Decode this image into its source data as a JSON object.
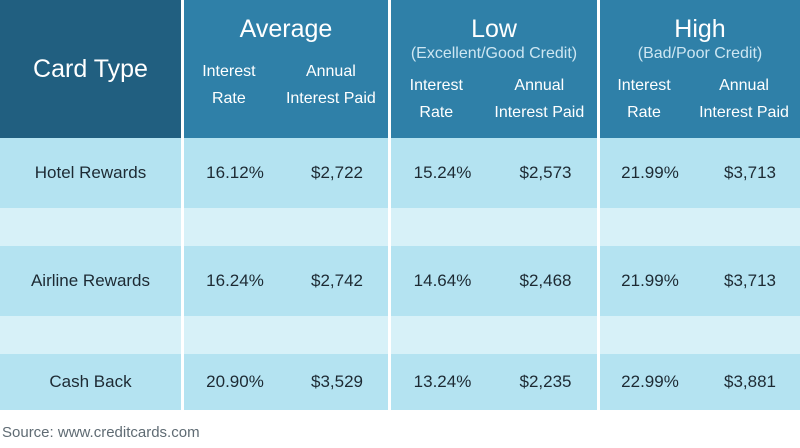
{
  "header": {
    "card_type": "Card Type",
    "groups": [
      {
        "title": "Average",
        "subtitle": "",
        "col1": [
          "Interest",
          "Rate"
        ],
        "col2": [
          "Annual",
          "Interest Paid"
        ]
      },
      {
        "title": "Low",
        "subtitle": "(Excellent/Good Credit)",
        "col1": [
          "Interest",
          "Rate"
        ],
        "col2": [
          "Annual",
          "Interest Paid"
        ]
      },
      {
        "title": "High",
        "subtitle": "(Bad/Poor Credit)",
        "col1": [
          "Interest",
          "Rate"
        ],
        "col2": [
          "Annual",
          "Interest Paid"
        ]
      }
    ]
  },
  "rows": [
    {
      "type": "Hotel Rewards",
      "average": [
        "16.12%",
        "$2,722"
      ],
      "low": [
        "15.24%",
        "$2,573"
      ],
      "high": [
        "21.99%",
        "$3,713"
      ]
    },
    {
      "type": "Airline Rewards",
      "average": [
        "16.24%",
        "$2,742"
      ],
      "low": [
        "14.64%",
        "$2,468"
      ],
      "high": [
        "21.99%",
        "$3,713"
      ]
    },
    {
      "type": "Cash Back",
      "average": [
        "20.90%",
        "$3,529"
      ],
      "low": [
        "13.24%",
        "$2,235"
      ],
      "high": [
        "22.99%",
        "$3,881"
      ]
    }
  ],
  "source": "Source: www.creditcards.com",
  "colors": {
    "header": "#2f80a8",
    "header_dark": "#215f80",
    "row_band": "#b4e3f1",
    "row_gap": "#d7f1f8"
  }
}
